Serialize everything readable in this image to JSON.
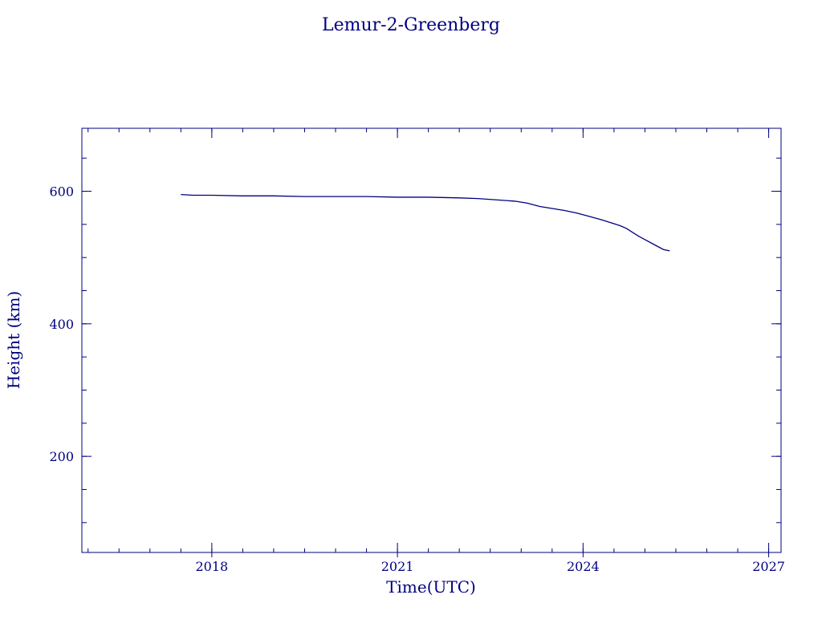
{
  "chart_data": {
    "type": "line",
    "title": "Lemur-2-Greenberg",
    "xlabel": "Time(UTC)",
    "ylabel": "Height (km)",
    "xlim": [
      2015.9,
      2027.2
    ],
    "ylim": [
      55,
      695
    ],
    "x_ticks": [
      {
        "value": 2018,
        "label": "2018"
      },
      {
        "value": 2021,
        "label": "2021"
      },
      {
        "value": 2024,
        "label": "2024"
      },
      {
        "value": 2027,
        "label": "2027"
      }
    ],
    "x_minor_step": 0.5,
    "y_ticks": [
      {
        "value": 200,
        "label": "200"
      },
      {
        "value": 400,
        "label": "400"
      },
      {
        "value": 600,
        "label": "600"
      }
    ],
    "y_minor_step": 50,
    "grid": false,
    "color": "#00007f",
    "series": [
      {
        "x": [
          2017.5,
          2017.7,
          2018.0,
          2018.5,
          2019.0,
          2019.5,
          2020.0,
          2020.5,
          2021.0,
          2021.5,
          2022.0,
          2022.3,
          2022.6,
          2022.9,
          2023.1,
          2023.3,
          2023.5,
          2023.7,
          2023.9,
          2024.1,
          2024.3,
          2024.5,
          2024.6,
          2024.7,
          2024.8,
          2024.9,
          2025.0,
          2025.1,
          2025.2,
          2025.3,
          2025.4
        ],
        "y": [
          595,
          594,
          594,
          593,
          593,
          592,
          592,
          592,
          591,
          591,
          590,
          589,
          587,
          585,
          582,
          577,
          574,
          571,
          567,
          562,
          557,
          551,
          548,
          544,
          538,
          532,
          527,
          522,
          517,
          512,
          510
        ]
      }
    ]
  }
}
